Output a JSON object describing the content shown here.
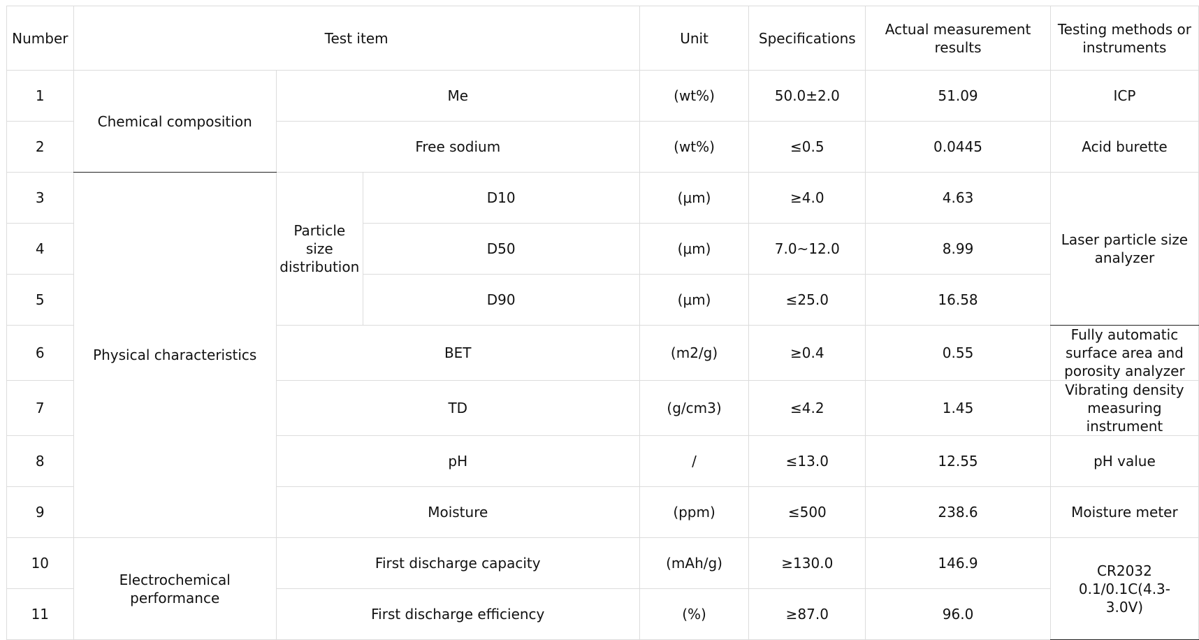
{
  "headers": {
    "number": "Number",
    "test_item": "Test item",
    "unit": "Unit",
    "specifications": "Specifications",
    "actual": "Actual measurement results",
    "method": "Testing methods or instruments"
  },
  "groups": {
    "chemical": "Chemical composition",
    "physical": "Physical characteristics",
    "electrochemical": "Electrochemical performance",
    "psd": "Particle size distribution"
  },
  "rows": [
    {
      "no": "1",
      "item": "Me",
      "unit": "(wt%)",
      "spec": "50.0±2.0",
      "result": "51.09",
      "method": "ICP"
    },
    {
      "no": "2",
      "item": "Free sodium",
      "unit": "(wt%)",
      "spec": "≤0.5",
      "result": "0.0445",
      "method": "Acid burette"
    },
    {
      "no": "3",
      "item": "D10",
      "unit": "(μm)",
      "spec": "≥4.0",
      "result": "4.63",
      "method": "Laser particle size analyzer"
    },
    {
      "no": "4",
      "item": "D50",
      "unit": "(μm)",
      "spec": "7.0~12.0",
      "result": "8.99",
      "method": ""
    },
    {
      "no": "5",
      "item": "D90",
      "unit": "(μm)",
      "spec": "≤25.0",
      "result": "16.58",
      "method": ""
    },
    {
      "no": "6",
      "item": "BET",
      "unit": "(m2/g)",
      "spec": "≥0.4",
      "result": "0.55",
      "method": "Fully automatic surface area and porosity analyzer"
    },
    {
      "no": "7",
      "item": "TD",
      "unit": "(g/cm3)",
      "spec": "≤4.2",
      "result": "1.45",
      "method": "Vibrating density measuring instrument"
    },
    {
      "no": "8",
      "item": "pH",
      "unit": "/",
      "spec": "≤13.0",
      "result": "12.55",
      "method": "pH value"
    },
    {
      "no": "9",
      "item": "Moisture",
      "unit": "(ppm)",
      "spec": "≤500",
      "result": "238.6",
      "method": "Moisture meter"
    },
    {
      "no": "10",
      "item": "First discharge capacity",
      "unit": "(mAh/g)",
      "spec": "≥130.0",
      "result": "146.9",
      "method": "CR2032 0.1/0.1C(4.3-3.0V)"
    },
    {
      "no": "11",
      "item": "First discharge efficiency",
      "unit": "(%)",
      "spec": "≥87.0",
      "result": "96.0",
      "method": ""
    }
  ]
}
